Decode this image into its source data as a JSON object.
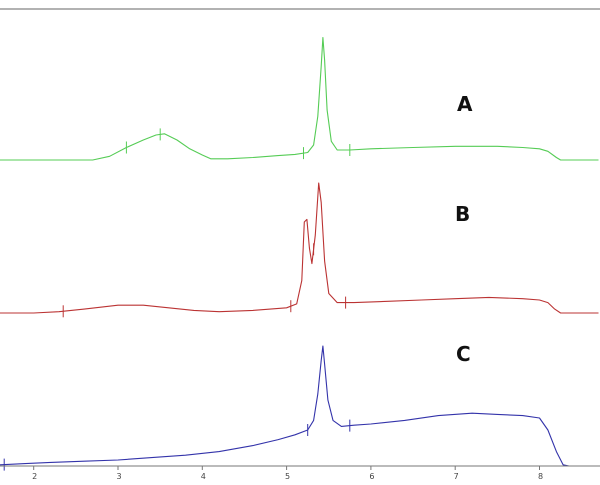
{
  "chart_data": {
    "type": "line",
    "title": "",
    "xlabel": "",
    "ylabel": "",
    "xlim": [
      1.6,
      8.7
    ],
    "grid": false,
    "x_ticks": [
      {
        "value": 2,
        "label": "2"
      },
      {
        "value": 3,
        "label": "3"
      },
      {
        "value": 4,
        "label": "4"
      },
      {
        "value": 5,
        "label": "5"
      },
      {
        "value": 6,
        "label": "6"
      },
      {
        "value": 7,
        "label": "7"
      },
      {
        "value": 8,
        "label": "8"
      }
    ],
    "series": [
      {
        "name": "A",
        "color": "#55cc55",
        "points": [
          [
            1.6,
            0
          ],
          [
            2.5,
            0
          ],
          [
            2.7,
            0
          ],
          [
            2.9,
            0.03
          ],
          [
            3.1,
            0.1
          ],
          [
            3.3,
            0.16
          ],
          [
            3.45,
            0.2
          ],
          [
            3.55,
            0.21
          ],
          [
            3.7,
            0.16
          ],
          [
            3.85,
            0.09
          ],
          [
            4.0,
            0.04
          ],
          [
            4.1,
            0.01
          ],
          [
            4.3,
            0.01
          ],
          [
            4.6,
            0.02
          ],
          [
            4.9,
            0.035
          ],
          [
            5.1,
            0.045
          ],
          [
            5.25,
            0.06
          ],
          [
            5.32,
            0.12
          ],
          [
            5.37,
            0.35
          ],
          [
            5.41,
            0.75
          ],
          [
            5.43,
            0.98
          ],
          [
            5.45,
            0.8
          ],
          [
            5.48,
            0.4
          ],
          [
            5.53,
            0.15
          ],
          [
            5.6,
            0.08
          ],
          [
            5.75,
            0.08
          ],
          [
            6.0,
            0.09
          ],
          [
            6.5,
            0.1
          ],
          [
            7.0,
            0.11
          ],
          [
            7.5,
            0.11
          ],
          [
            7.8,
            0.1
          ],
          [
            8.0,
            0.09
          ],
          [
            8.1,
            0.07
          ],
          [
            8.2,
            0.02
          ],
          [
            8.25,
            0
          ],
          [
            8.7,
            0
          ]
        ],
        "markers": [
          3.1,
          3.5,
          5.2,
          5.75
        ]
      },
      {
        "name": "B",
        "color": "#bb3333",
        "points": [
          [
            1.6,
            0
          ],
          [
            2.0,
            0
          ],
          [
            2.3,
            0.01
          ],
          [
            2.6,
            0.03
          ],
          [
            3.0,
            0.06
          ],
          [
            3.3,
            0.06
          ],
          [
            3.6,
            0.04
          ],
          [
            3.9,
            0.02
          ],
          [
            4.2,
            0.01
          ],
          [
            4.6,
            0.02
          ],
          [
            5.0,
            0.04
          ],
          [
            5.12,
            0.07
          ],
          [
            5.18,
            0.25
          ],
          [
            5.21,
            0.7
          ],
          [
            5.24,
            0.72
          ],
          [
            5.27,
            0.5
          ],
          [
            5.3,
            0.38
          ],
          [
            5.34,
            0.6
          ],
          [
            5.38,
            1.0
          ],
          [
            5.41,
            0.85
          ],
          [
            5.45,
            0.4
          ],
          [
            5.5,
            0.15
          ],
          [
            5.6,
            0.08
          ],
          [
            5.8,
            0.08
          ],
          [
            6.2,
            0.09
          ],
          [
            6.6,
            0.1
          ],
          [
            7.0,
            0.11
          ],
          [
            7.4,
            0.12
          ],
          [
            7.8,
            0.11
          ],
          [
            8.0,
            0.1
          ],
          [
            8.1,
            0.08
          ],
          [
            8.18,
            0.03
          ],
          [
            8.25,
            0
          ],
          [
            8.7,
            0
          ]
        ],
        "markers": [
          2.35,
          5.05,
          5.32,
          5.7
        ]
      },
      {
        "name": "C",
        "color": "#3333aa",
        "points": [
          [
            1.6,
            0.01
          ],
          [
            1.9,
            0.02
          ],
          [
            2.2,
            0.03
          ],
          [
            2.6,
            0.04
          ],
          [
            3.0,
            0.05
          ],
          [
            3.4,
            0.07
          ],
          [
            3.8,
            0.09
          ],
          [
            4.2,
            0.12
          ],
          [
            4.6,
            0.17
          ],
          [
            4.9,
            0.22
          ],
          [
            5.1,
            0.26
          ],
          [
            5.25,
            0.3
          ],
          [
            5.32,
            0.38
          ],
          [
            5.37,
            0.6
          ],
          [
            5.41,
            0.88
          ],
          [
            5.43,
            1.0
          ],
          [
            5.45,
            0.85
          ],
          [
            5.49,
            0.55
          ],
          [
            5.55,
            0.38
          ],
          [
            5.65,
            0.33
          ],
          [
            5.8,
            0.34
          ],
          [
            6.0,
            0.35
          ],
          [
            6.4,
            0.38
          ],
          [
            6.8,
            0.42
          ],
          [
            7.2,
            0.44
          ],
          [
            7.5,
            0.43
          ],
          [
            7.8,
            0.42
          ],
          [
            8.0,
            0.4
          ],
          [
            8.1,
            0.3
          ],
          [
            8.2,
            0.12
          ],
          [
            8.28,
            0.01
          ],
          [
            8.35,
            0
          ],
          [
            8.7,
            0
          ]
        ],
        "markers": [
          1.65,
          5.25,
          5.75
        ]
      }
    ]
  }
}
